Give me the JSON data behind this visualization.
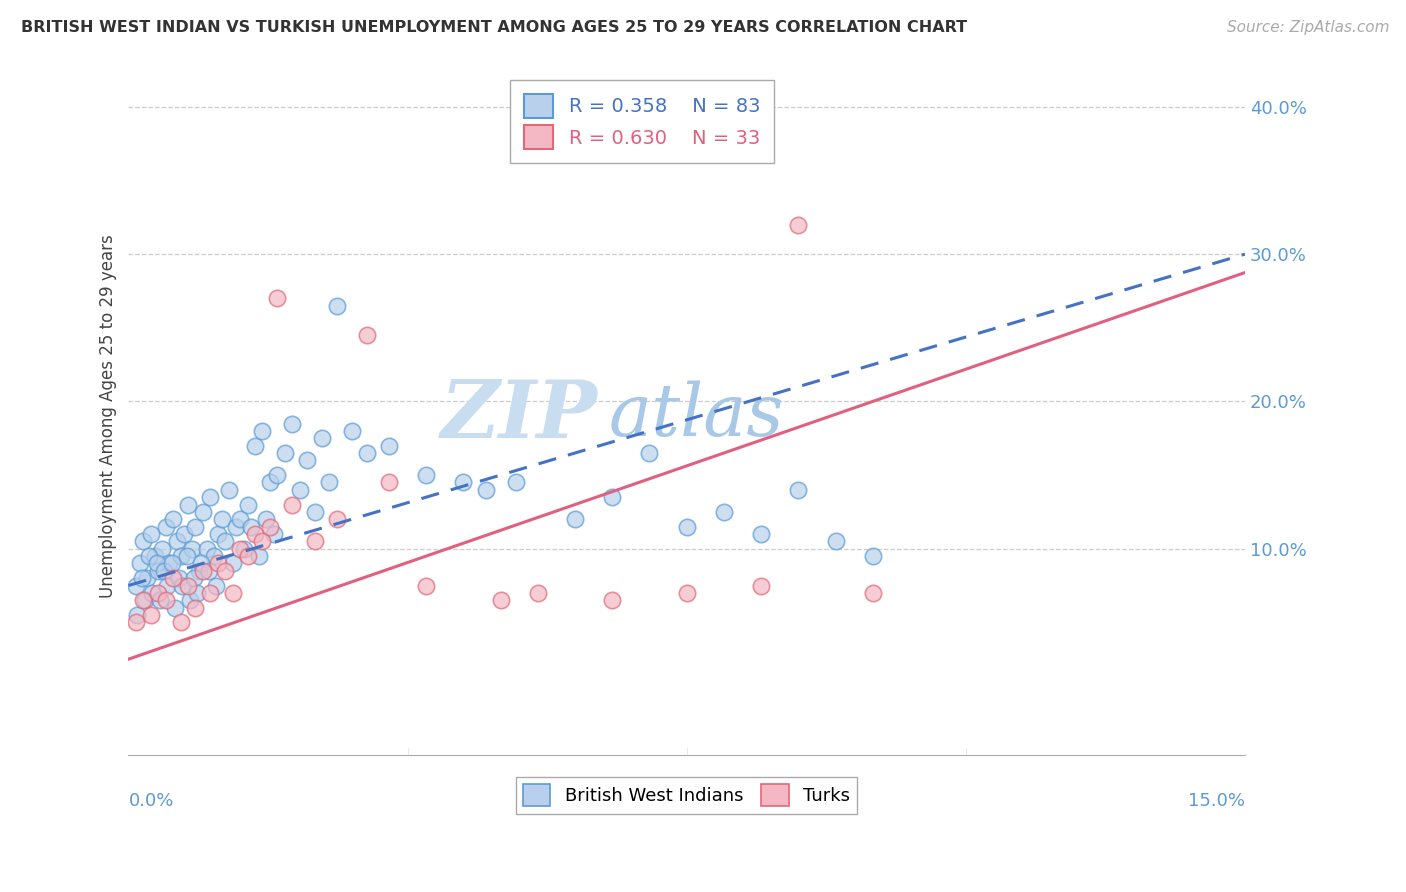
{
  "title": "BRITISH WEST INDIAN VS TURKISH UNEMPLOYMENT AMONG AGES 25 TO 29 YEARS CORRELATION CHART",
  "source": "Source: ZipAtlas.com",
  "ylabel": "Unemployment Among Ages 25 to 29 years",
  "xmin": 0.0,
  "xmax": 15.0,
  "ymin": -4.0,
  "ymax": 42.0,
  "yticks": [
    10.0,
    20.0,
    30.0,
    40.0
  ],
  "ytick_labels_right": [
    "10.0%",
    "20.0%",
    "30.0%",
    "40.0%"
  ],
  "blue_R": "0.358",
  "blue_N": "83",
  "pink_R": "0.630",
  "pink_N": "33",
  "blue_face": "#b8d0ec",
  "blue_edge": "#5b9bd5",
  "pink_face": "#f4b8c4",
  "pink_edge": "#e06878",
  "blue_line": "#4472c4",
  "pink_line": "#e06080",
  "watermark_zip": "ZIP",
  "watermark_atlas": "atlas",
  "watermark_color_zip": "#c8ddf0",
  "watermark_color_atlas": "#a8c8e8",
  "legend_label_blue": "British West Indians",
  "legend_label_pink": "Turks",
  "blue_line_intercept": 7.5,
  "blue_line_slope": 1.5,
  "pink_line_intercept": 2.5,
  "pink_line_slope": 1.75,
  "blue_x": [
    0.1,
    0.15,
    0.2,
    0.25,
    0.3,
    0.35,
    0.4,
    0.45,
    0.5,
    0.55,
    0.6,
    0.65,
    0.7,
    0.75,
    0.8,
    0.85,
    0.9,
    0.95,
    1.0,
    1.05,
    1.1,
    1.15,
    1.2,
    1.25,
    1.3,
    1.35,
    1.4,
    1.45,
    1.5,
    1.55,
    1.6,
    1.65,
    1.7,
    1.75,
    1.8,
    1.85,
    1.9,
    1.95,
    2.0,
    2.1,
    2.2,
    2.3,
    2.4,
    2.5,
    2.6,
    2.7,
    2.8,
    3.0,
    3.2,
    3.5,
    4.0,
    4.5,
    4.8,
    5.2,
    6.0,
    6.5,
    7.0,
    7.5,
    8.0,
    8.5,
    9.0,
    9.5,
    10.0,
    0.12,
    0.18,
    0.22,
    0.28,
    0.32,
    0.38,
    0.42,
    0.48,
    0.52,
    0.58,
    0.62,
    0.68,
    0.72,
    0.78,
    0.82,
    0.88,
    0.92,
    0.98,
    1.08,
    1.18
  ],
  "blue_y": [
    7.5,
    9.0,
    10.5,
    8.0,
    11.0,
    9.5,
    8.5,
    10.0,
    11.5,
    9.0,
    12.0,
    10.5,
    9.5,
    11.0,
    13.0,
    10.0,
    11.5,
    8.5,
    12.5,
    10.0,
    13.5,
    9.5,
    11.0,
    12.0,
    10.5,
    14.0,
    9.0,
    11.5,
    12.0,
    10.0,
    13.0,
    11.5,
    17.0,
    9.5,
    18.0,
    12.0,
    14.5,
    11.0,
    15.0,
    16.5,
    18.5,
    14.0,
    16.0,
    12.5,
    17.5,
    14.5,
    26.5,
    18.0,
    16.5,
    17.0,
    15.0,
    14.5,
    14.0,
    14.5,
    12.0,
    13.5,
    16.5,
    11.5,
    12.5,
    11.0,
    14.0,
    10.5,
    9.5,
    5.5,
    8.0,
    6.5,
    9.5,
    7.0,
    9.0,
    6.5,
    8.5,
    7.5,
    9.0,
    6.0,
    8.0,
    7.5,
    9.5,
    6.5,
    8.0,
    7.0,
    9.0,
    8.5,
    7.5
  ],
  "pink_x": [
    0.1,
    0.2,
    0.3,
    0.4,
    0.5,
    0.6,
    0.7,
    0.8,
    0.9,
    1.0,
    1.1,
    1.2,
    1.3,
    1.4,
    1.5,
    1.6,
    1.7,
    1.8,
    1.9,
    2.0,
    2.2,
    2.5,
    2.8,
    3.2,
    3.5,
    4.0,
    5.0,
    5.5,
    6.5,
    7.5,
    8.5,
    9.0,
    10.0
  ],
  "pink_y": [
    5.0,
    6.5,
    5.5,
    7.0,
    6.5,
    8.0,
    5.0,
    7.5,
    6.0,
    8.5,
    7.0,
    9.0,
    8.5,
    7.0,
    10.0,
    9.5,
    11.0,
    10.5,
    11.5,
    27.0,
    13.0,
    10.5,
    12.0,
    24.5,
    14.5,
    7.5,
    6.5,
    7.0,
    6.5,
    7.0,
    7.5,
    32.0,
    7.0
  ]
}
